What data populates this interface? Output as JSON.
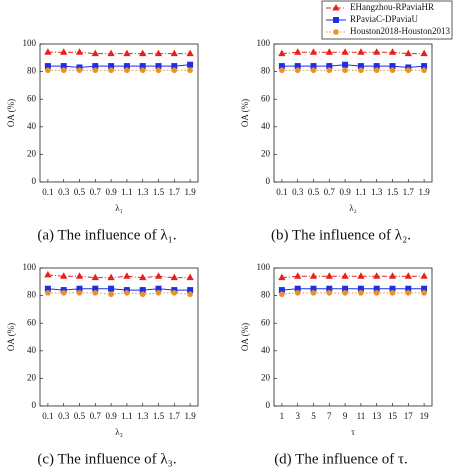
{
  "chart_data": [
    {
      "type": "line",
      "caption": "(a) The influence of λ₁.",
      "xlabel": "λ₁",
      "ylabel": "OA (%)",
      "x": [
        0.1,
        0.3,
        0.5,
        0.7,
        0.9,
        1.1,
        1.3,
        1.5,
        1.7,
        1.9
      ],
      "xlim": [
        0,
        2
      ],
      "xticks": [
        0.1,
        0.3,
        0.5,
        0.7,
        0.9,
        1.1,
        1.3,
        1.5,
        1.7,
        1.9
      ],
      "ylim": [
        0,
        100
      ],
      "yticks": [
        0,
        20,
        40,
        60,
        80,
        100
      ],
      "series": [
        {
          "name": "EHangzhou-RPaviaHR",
          "color": "#e8211c",
          "marker": "triangle",
          "linestyle": "dashdot",
          "values": [
            94,
            94,
            94,
            93,
            93,
            93,
            93,
            93,
            93,
            93
          ]
        },
        {
          "name": "RPaviaC-DPaviaU",
          "color": "#1f2fe0",
          "marker": "square",
          "linestyle": "solid",
          "values": [
            84,
            84,
            83,
            84,
            84,
            84,
            84,
            84,
            84,
            85
          ]
        },
        {
          "name": "Houston2018-Houston2013",
          "color": "#e8922a",
          "marker": "circle",
          "linestyle": "dotted",
          "values": [
            81,
            81,
            81,
            81,
            81,
            81,
            81,
            81,
            81,
            81
          ]
        }
      ]
    },
    {
      "type": "line",
      "caption": "(b) The influence of λ₂.",
      "xlabel": "λ₂",
      "ylabel": "OA (%)",
      "x": [
        0.1,
        0.3,
        0.5,
        0.7,
        0.9,
        1.1,
        1.3,
        1.5,
        1.7,
        1.9
      ],
      "xlim": [
        0,
        2
      ],
      "xticks": [
        0.1,
        0.3,
        0.5,
        0.7,
        0.9,
        1.1,
        1.3,
        1.5,
        1.7,
        1.9
      ],
      "ylim": [
        0,
        100
      ],
      "yticks": [
        0,
        20,
        40,
        60,
        80,
        100
      ],
      "series": [
        {
          "color": "#e8211c",
          "marker": "triangle",
          "linestyle": "dashdot",
          "values": [
            93,
            94,
            94,
            94,
            94,
            94,
            94,
            94,
            93,
            93
          ]
        },
        {
          "color": "#1f2fe0",
          "marker": "square",
          "linestyle": "solid",
          "values": [
            84,
            84,
            84,
            84,
            85,
            84,
            84,
            84,
            83,
            84
          ]
        },
        {
          "color": "#e8922a",
          "marker": "circle",
          "linestyle": "dotted",
          "values": [
            81,
            81,
            81,
            81,
            81,
            81,
            81,
            81,
            81,
            81
          ]
        }
      ]
    },
    {
      "type": "line",
      "caption": "(c) The influence of λ₃.",
      "xlabel": "λ₃",
      "ylabel": "OA (%)",
      "x": [
        0.1,
        0.3,
        0.5,
        0.7,
        0.9,
        1.1,
        1.3,
        1.5,
        1.7,
        1.9
      ],
      "xlim": [
        0,
        2
      ],
      "xticks": [
        0.1,
        0.3,
        0.5,
        0.7,
        0.9,
        1.1,
        1.3,
        1.5,
        1.7,
        1.9
      ],
      "ylim": [
        0,
        100
      ],
      "yticks": [
        0,
        20,
        40,
        60,
        80,
        100
      ],
      "series": [
        {
          "color": "#e8211c",
          "marker": "triangle",
          "linestyle": "dashdot",
          "values": [
            95,
            94,
            94,
            93,
            93,
            94,
            93,
            94,
            93,
            93
          ]
        },
        {
          "color": "#1f2fe0",
          "marker": "square",
          "linestyle": "solid",
          "values": [
            85,
            84,
            85,
            85,
            85,
            84,
            84,
            85,
            84,
            84
          ]
        },
        {
          "color": "#e8922a",
          "marker": "circle",
          "linestyle": "dotted",
          "values": [
            82,
            82,
            82,
            82,
            81,
            82,
            81,
            82,
            82,
            81
          ]
        }
      ]
    },
    {
      "type": "line",
      "caption": "(d) The influence of τ.",
      "xlabel": "τ",
      "ylabel": "OA (%)",
      "x": [
        1,
        3,
        5,
        7,
        9,
        11,
        13,
        15,
        17,
        19
      ],
      "xlim": [
        0,
        20
      ],
      "xticks": [
        1,
        3,
        5,
        7,
        9,
        11,
        13,
        15,
        17,
        19
      ],
      "ylim": [
        0,
        100
      ],
      "yticks": [
        0,
        20,
        40,
        60,
        80,
        100
      ],
      "series": [
        {
          "color": "#e8211c",
          "marker": "triangle",
          "linestyle": "dashdot",
          "values": [
            93,
            94,
            94,
            94,
            94,
            94,
            94,
            94,
            94,
            94
          ]
        },
        {
          "color": "#1f2fe0",
          "marker": "square",
          "linestyle": "solid",
          "values": [
            84,
            85,
            85,
            85,
            85,
            85,
            85,
            85,
            85,
            85
          ]
        },
        {
          "color": "#e8922a",
          "marker": "circle",
          "linestyle": "dotted",
          "values": [
            81,
            82,
            82,
            82,
            82,
            82,
            82,
            82,
            82,
            82
          ]
        }
      ]
    }
  ]
}
